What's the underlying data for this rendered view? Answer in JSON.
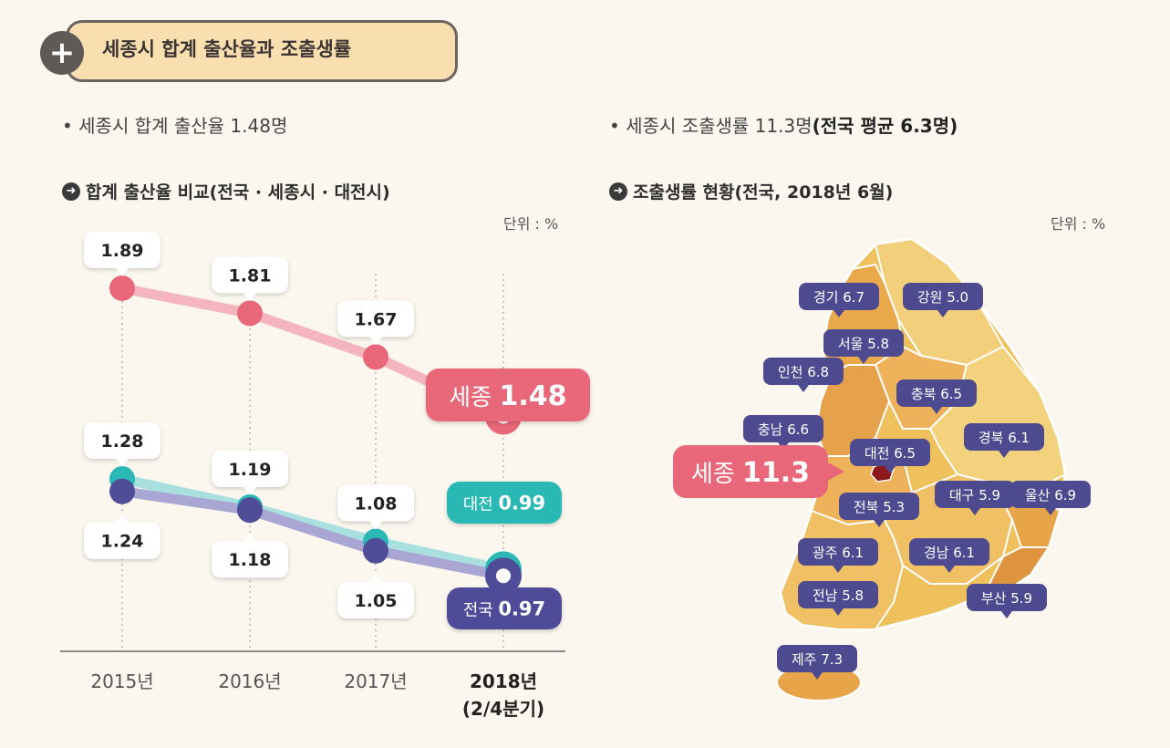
{
  "header": {
    "title": "세종시 합계 출산율과 조출생률"
  },
  "left": {
    "bullet": "• 세종시 합계 출산율 1.48명",
    "section_title": "합계 출산율 비교(전국 · 세종시 · 대전시)",
    "unit": "단위 : %"
  },
  "right": {
    "bullet_prefix": "• 세종시 조출생률 11.3명",
    "bullet_bold": "(전국 평균 6.3명)",
    "section_title": "조출생률 현황(전국, 2018년 6월)",
    "unit": "단위 : %"
  },
  "colors": {
    "sejong": "#e8687a",
    "daejeon": "#2bb8b5",
    "national": "#4f4c98",
    "map_base": "#efc15d",
    "map_highlight": "#8c1a1a",
    "tag": "#4d4a8f"
  },
  "chart_data": [
    {
      "type": "line",
      "title": "합계 출산율 비교(전국 · 세종시 · 대전시)",
      "unit": "단위 : %",
      "categories": [
        "2015년",
        "2016년",
        "2017년",
        "2018년\n(2/4분기)"
      ],
      "series": [
        {
          "name": "세종",
          "values": [
            1.89,
            1.81,
            1.67,
            1.48
          ],
          "label_last": "세종 1.48"
        },
        {
          "name": "대전",
          "values": [
            1.28,
            1.19,
            1.08,
            0.99
          ],
          "label_last": "대전 0.99"
        },
        {
          "name": "전국",
          "values": [
            1.24,
            1.18,
            1.05,
            0.97
          ],
          "label_last": "전국 0.97"
        }
      ]
    },
    {
      "type": "map",
      "title": "조출생률 현황(전국, 2018년 6월)",
      "unit": "단위 : %",
      "regions": [
        {
          "name": "경기",
          "value": "6.7"
        },
        {
          "name": "강원",
          "value": "5.0"
        },
        {
          "name": "서울",
          "value": "5.8"
        },
        {
          "name": "인천",
          "value": "6.8"
        },
        {
          "name": "충북",
          "value": "6.5"
        },
        {
          "name": "충남",
          "value": "6.6"
        },
        {
          "name": "경북",
          "value": "6.1"
        },
        {
          "name": "대전",
          "value": "6.5"
        },
        {
          "name": "세종",
          "value": "11.3"
        },
        {
          "name": "전북",
          "value": "5.3"
        },
        {
          "name": "대구",
          "value": "5.9"
        },
        {
          "name": "울산",
          "value": "6.9"
        },
        {
          "name": "광주",
          "value": "6.1"
        },
        {
          "name": "경남",
          "value": "6.1"
        },
        {
          "name": "전남",
          "value": "5.8"
        },
        {
          "name": "부산",
          "value": "5.9"
        },
        {
          "name": "제주",
          "value": "7.3"
        }
      ]
    }
  ]
}
